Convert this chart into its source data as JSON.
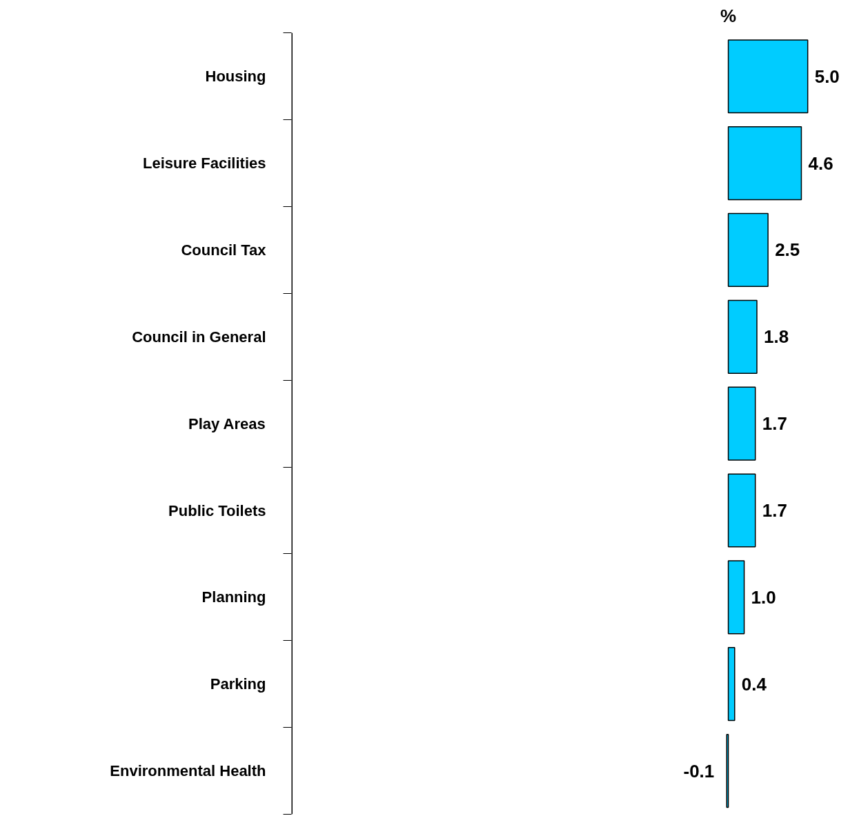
{
  "chart_data": {
    "type": "bar",
    "orientation": "horizontal",
    "xlabel": "%",
    "categories": [
      "Housing",
      "Leisure Facilities",
      "Council Tax",
      "Council in General",
      "Play Areas",
      "Public Toilets",
      "Planning",
      "Parking",
      "Environmental Health"
    ],
    "values": [
      5.0,
      4.6,
      2.5,
      1.8,
      1.7,
      1.7,
      1.0,
      0.4,
      -0.1
    ],
    "value_labels": [
      "5.0",
      "4.6",
      "2.5",
      "1.8",
      "1.7",
      "1.7",
      "1.0",
      "0.4",
      "-0.1"
    ],
    "color": "#00ccff",
    "grid": false
  }
}
